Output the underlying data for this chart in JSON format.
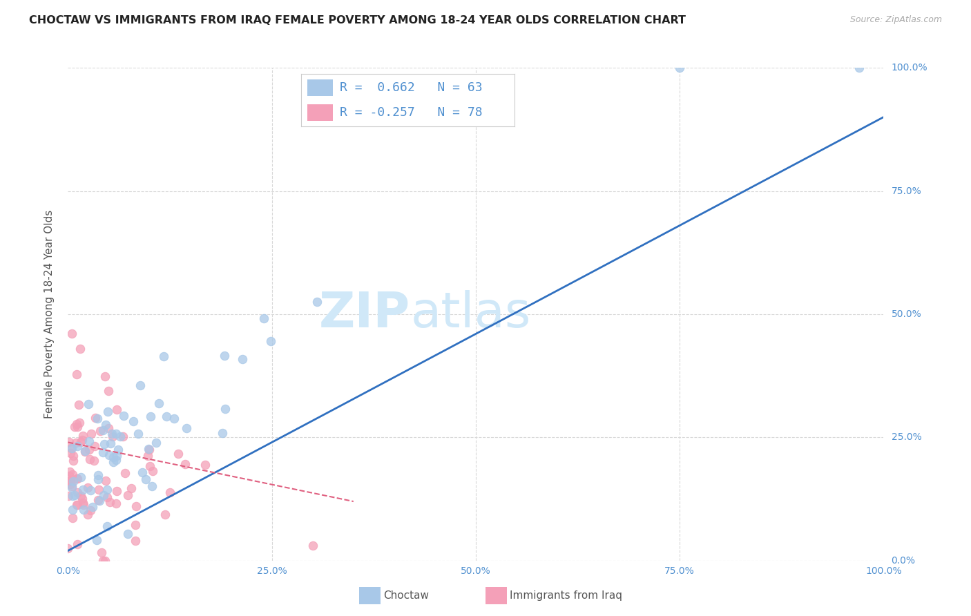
{
  "title": "CHOCTAW VS IMMIGRANTS FROM IRAQ FEMALE POVERTY AMONG 18-24 YEAR OLDS CORRELATION CHART",
  "source": "Source: ZipAtlas.com",
  "ylabel": "Female Poverty Among 18-24 Year Olds",
  "legend_label1": "Choctaw",
  "legend_label2": "Immigrants from Iraq",
  "R1": 0.662,
  "N1": 63,
  "R2": -0.257,
  "N2": 78,
  "choctaw_color": "#a8c8e8",
  "iraq_color": "#f4a0b8",
  "choctaw_line_color": "#3070c0",
  "iraq_line_color": "#e06080",
  "watermark_zip": "ZIP",
  "watermark_atlas": "atlas",
  "watermark_color": "#d0e8f8",
  "background_color": "#ffffff",
  "tick_color": "#5090d0",
  "grid_color": "#d8d8d8",
  "title_color": "#222222",
  "ylabel_color": "#555555",
  "source_color": "#aaaaaa",
  "legend_border_color": "#cccccc",
  "xlim": [
    0,
    100
  ],
  "ylim": [
    0,
    100
  ],
  "blue_line_x0": 0,
  "blue_line_y0": 2,
  "blue_line_x1": 100,
  "blue_line_y1": 90,
  "pink_line_x0": 0,
  "pink_line_y0": 24,
  "pink_line_x1": 35,
  "pink_line_y1": 12,
  "choctaw_seed": 7,
  "iraq_seed": 13
}
